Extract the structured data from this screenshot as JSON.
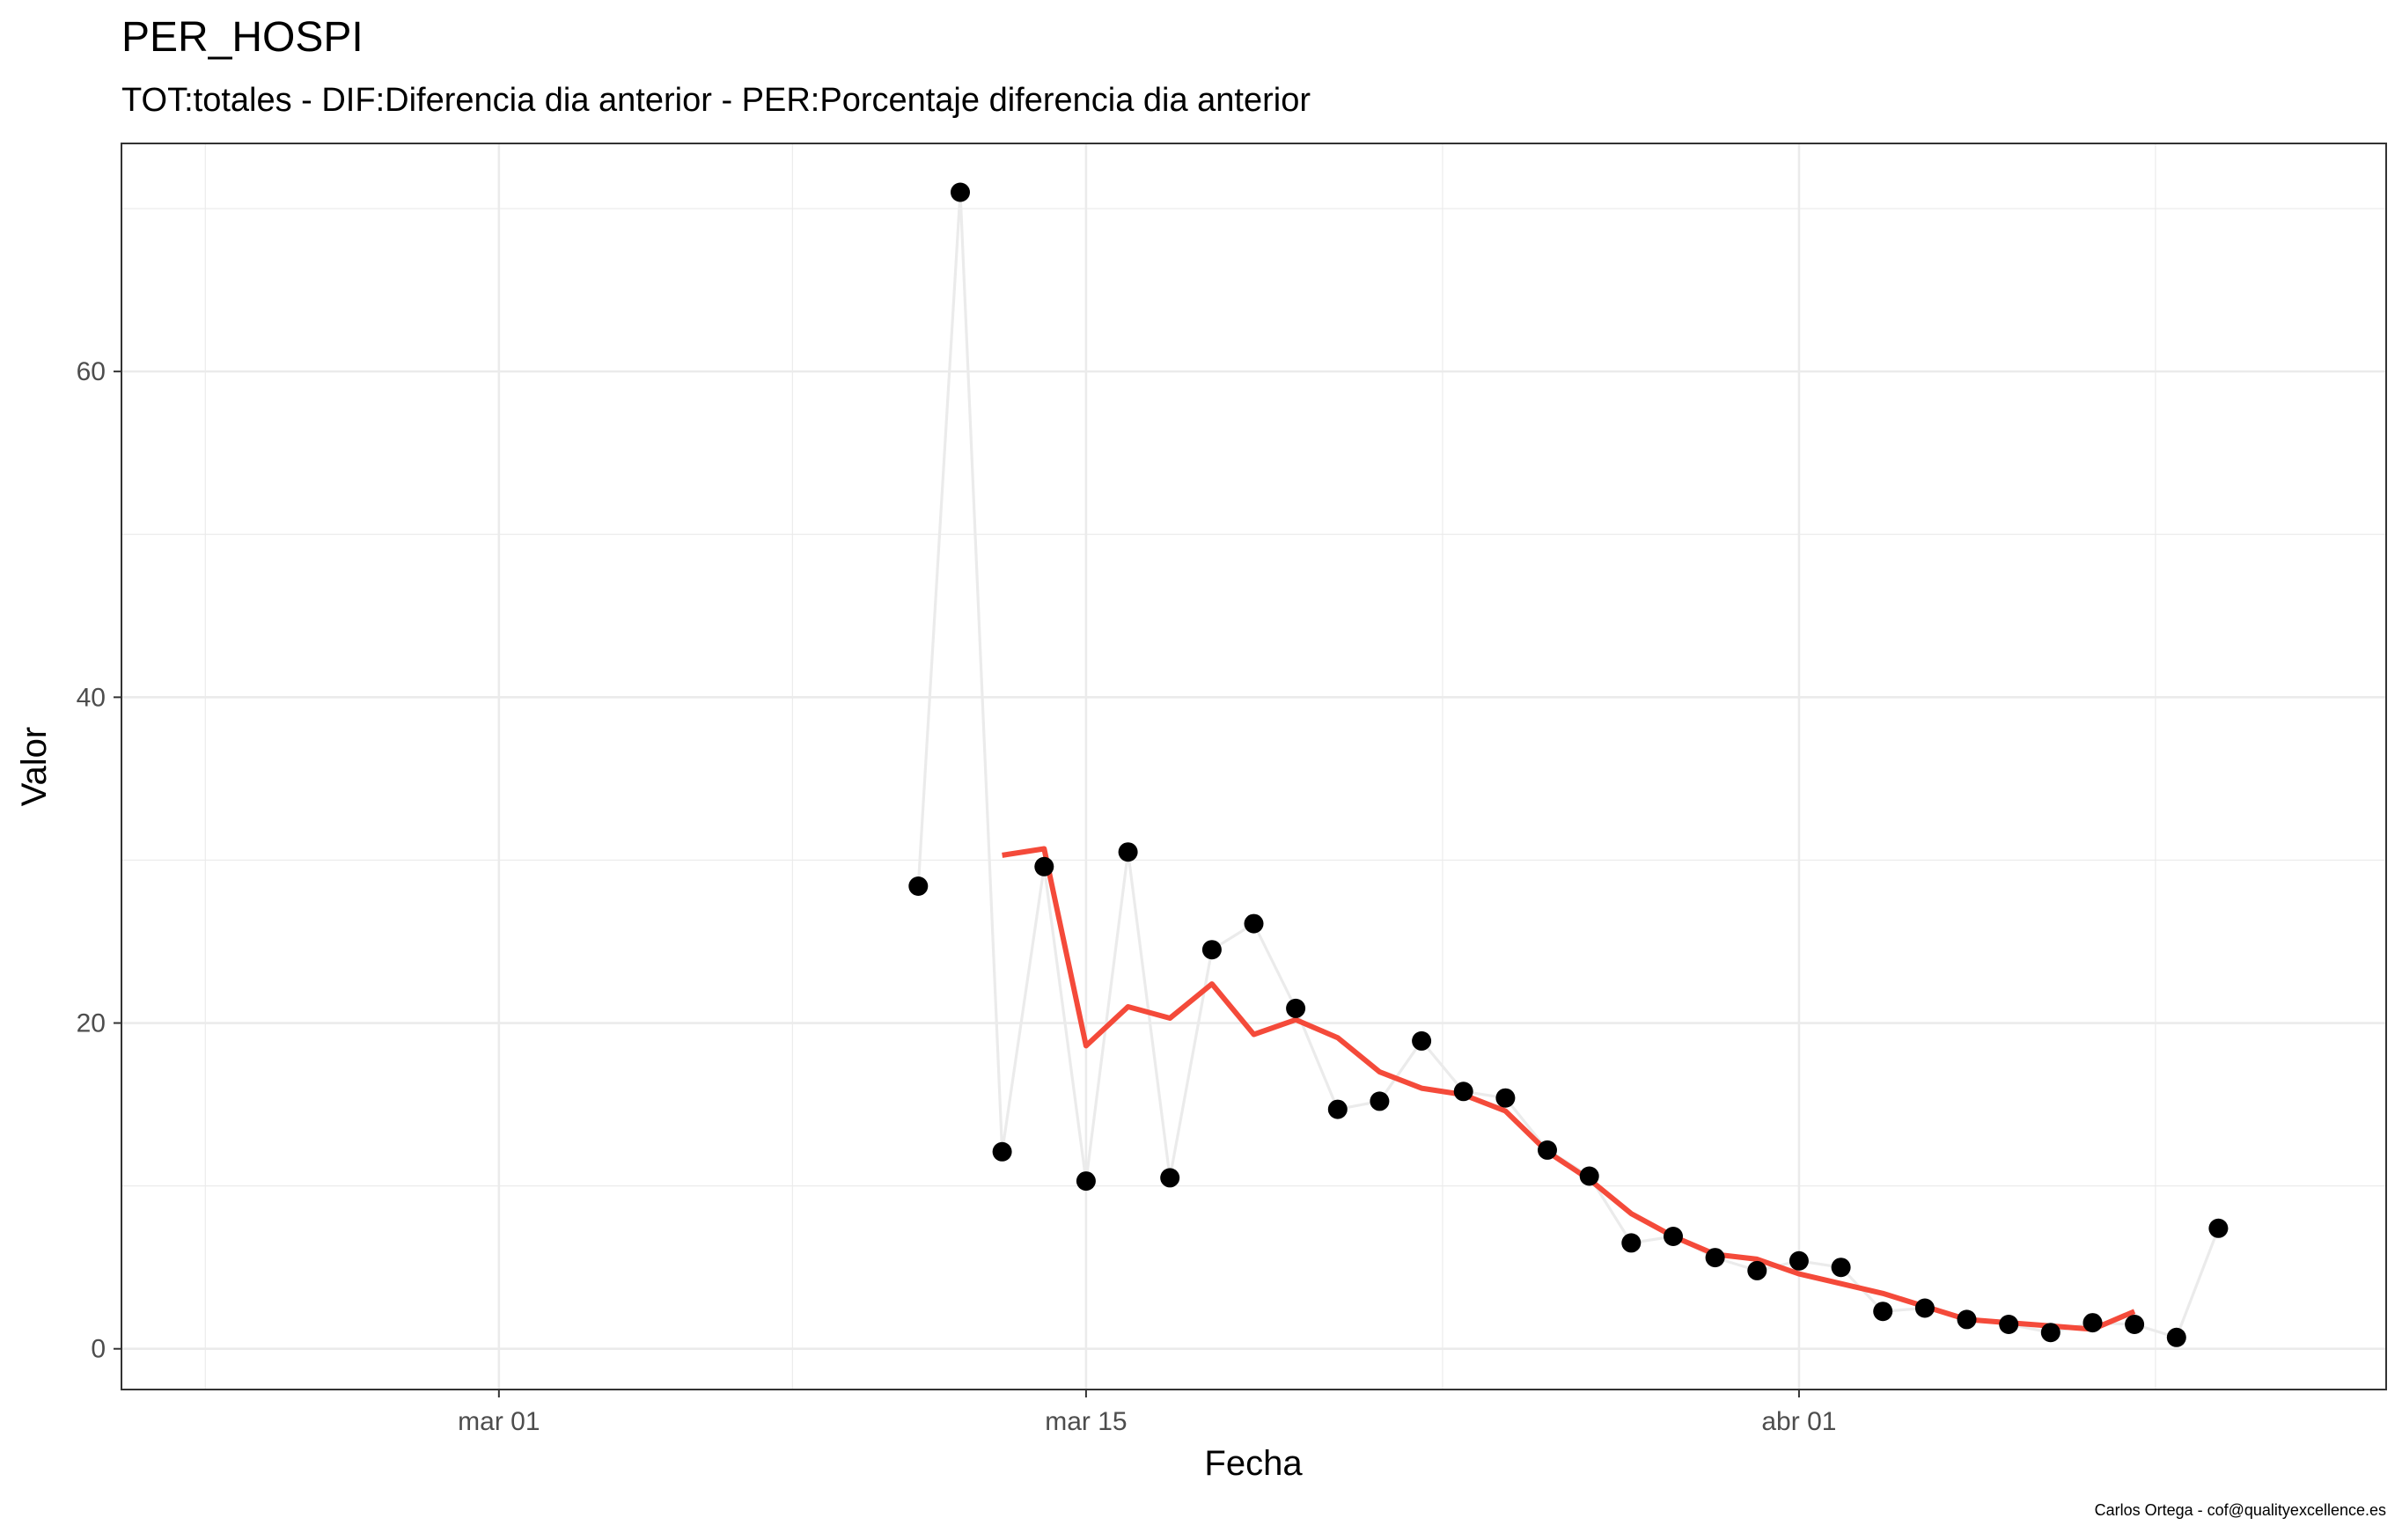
{
  "chart_data": {
    "type": "line",
    "title": "PER_HOSPI",
    "subtitle": "TOT:totales - DIF:Diferencia dia anterior - PER:Porcentaje diferencia dia anterior",
    "xlabel": "Fecha",
    "ylabel": "Valor",
    "caption": "Carlos Ortega - cof@qualityexcellence.es",
    "xlim": [
      "2020-02-21",
      "2020-04-15"
    ],
    "ylim": [
      -2.5,
      74
    ],
    "x_ticks": [
      {
        "date": "2020-03-01",
        "label": "mar 01"
      },
      {
        "date": "2020-03-15",
        "label": "mar 15"
      },
      {
        "date": "2020-04-01",
        "label": "abr 01"
      }
    ],
    "y_ticks": [
      0,
      20,
      40,
      60
    ],
    "grid": true,
    "series": [
      {
        "kind": "points-with-line",
        "color": "#000000",
        "line_color": "#ebebeb",
        "x": [
          "2020-03-11",
          "2020-03-12",
          "2020-03-13",
          "2020-03-14",
          "2020-03-15",
          "2020-03-16",
          "2020-03-17",
          "2020-03-18",
          "2020-03-19",
          "2020-03-20",
          "2020-03-21",
          "2020-03-22",
          "2020-03-23",
          "2020-03-24",
          "2020-03-25",
          "2020-03-26",
          "2020-03-27",
          "2020-03-28",
          "2020-03-29",
          "2020-03-30",
          "2020-03-31",
          "2020-04-01",
          "2020-04-02",
          "2020-04-03",
          "2020-04-04",
          "2020-04-05",
          "2020-04-06",
          "2020-04-07",
          "2020-04-08",
          "2020-04-09",
          "2020-04-10",
          "2020-04-11"
        ],
        "values": [
          28.4,
          71.0,
          12.1,
          29.6,
          10.3,
          30.5,
          10.5,
          24.5,
          26.1,
          20.9,
          14.7,
          15.2,
          18.9,
          15.8,
          15.4,
          12.2,
          10.6,
          6.5,
          6.9,
          5.6,
          4.8,
          5.4,
          5.0,
          2.3,
          2.5,
          1.8,
          1.5,
          1.0,
          1.6,
          1.5,
          0.7,
          7.4
        ]
      },
      {
        "kind": "line",
        "color": "#f44a3a",
        "x": [
          "2020-03-13",
          "2020-03-14",
          "2020-03-15",
          "2020-03-16",
          "2020-03-17",
          "2020-03-18",
          "2020-03-19",
          "2020-03-20",
          "2020-03-21",
          "2020-03-22",
          "2020-03-23",
          "2020-03-24",
          "2020-03-25",
          "2020-03-26",
          "2020-03-27",
          "2020-03-28",
          "2020-03-29",
          "2020-03-30",
          "2020-03-31",
          "2020-04-01",
          "2020-04-02",
          "2020-04-03",
          "2020-04-04",
          "2020-04-05",
          "2020-04-06",
          "2020-04-07",
          "2020-04-08",
          "2020-04-09"
        ],
        "values": [
          30.3,
          30.7,
          18.6,
          21.0,
          20.3,
          22.4,
          19.3,
          20.2,
          19.1,
          17.0,
          16.0,
          15.6,
          14.6,
          12.1,
          10.4,
          8.3,
          6.9,
          5.8,
          5.5,
          4.6,
          4.0,
          3.4,
          2.6,
          1.8,
          1.6,
          1.4,
          1.2,
          2.3
        ]
      }
    ]
  }
}
